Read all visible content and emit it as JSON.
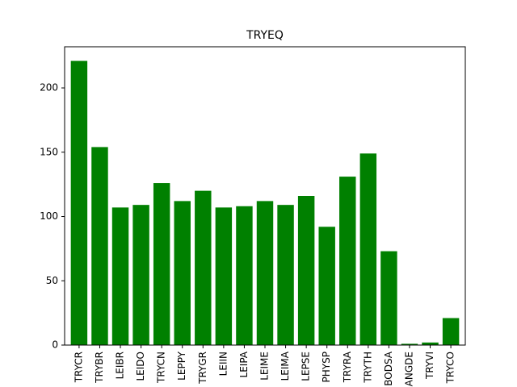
{
  "chart_data": {
    "type": "bar",
    "title": "TRYEQ",
    "xlabel": "",
    "ylabel": "",
    "categories": [
      "TRYCR",
      "TRYBR",
      "LEIBR",
      "LEIDO",
      "TRYCN",
      "LEPPY",
      "TRYGR",
      "LEIIN",
      "LEIPA",
      "LEIME",
      "LEIMA",
      "LEPSE",
      "PHYSP",
      "TRYRA",
      "TRYTH",
      "BODSA",
      "ANGDE",
      "TRYVI",
      "TRYCO"
    ],
    "values": [
      221,
      154,
      107,
      109,
      126,
      112,
      120,
      107,
      108,
      112,
      109,
      116,
      92,
      131,
      149,
      73,
      1,
      2,
      21
    ],
    "ylim": [
      0,
      232
    ],
    "yticks": [
      0,
      50,
      100,
      150,
      200
    ],
    "bar_color": "#008000",
    "grid": false,
    "legend": "none"
  }
}
